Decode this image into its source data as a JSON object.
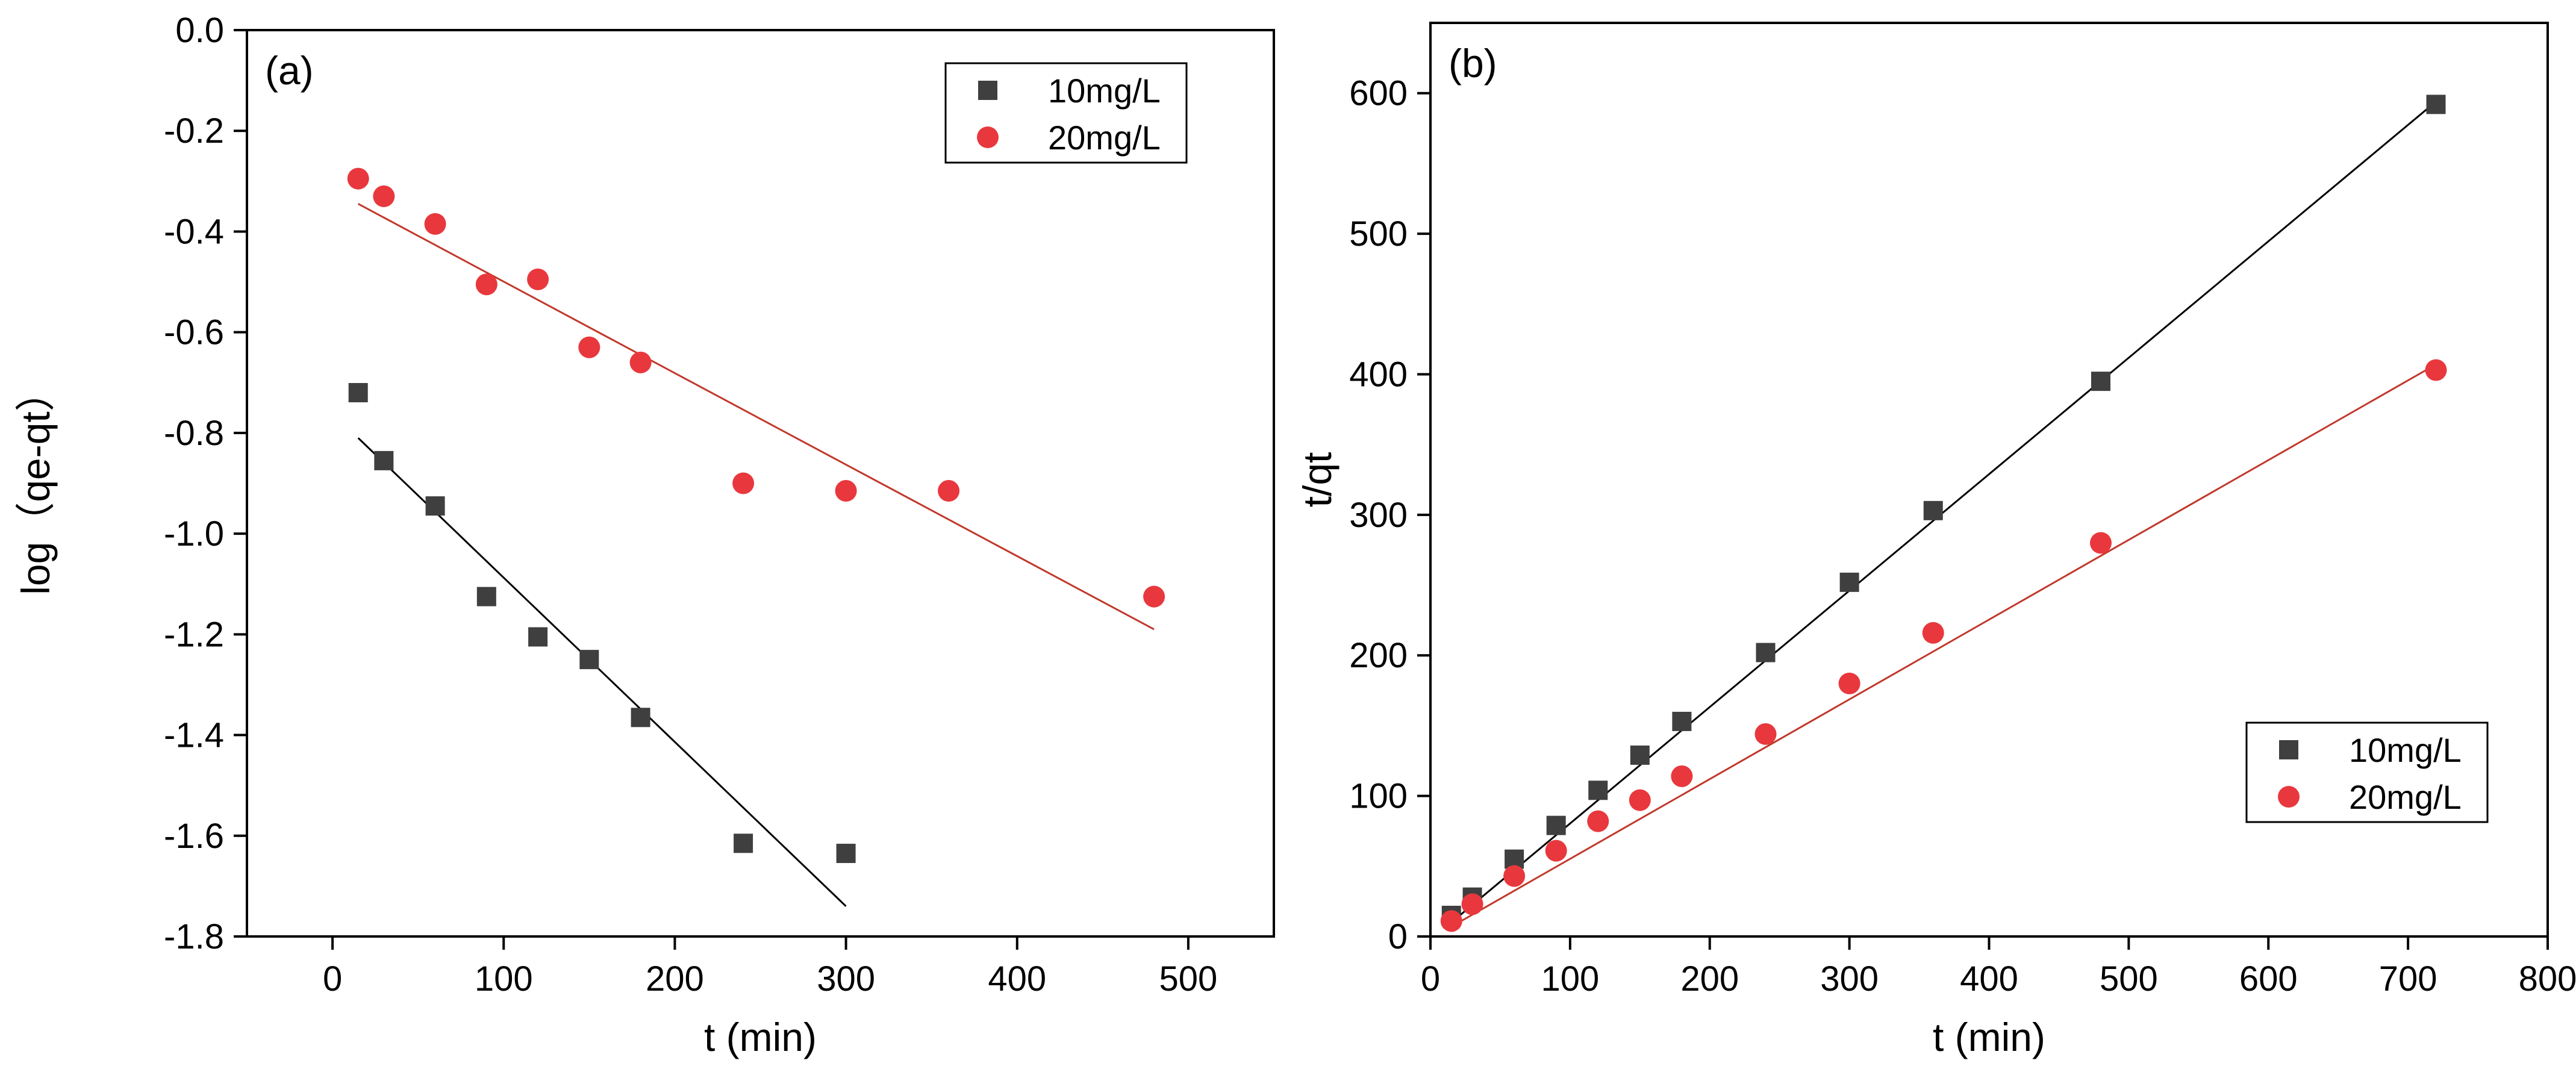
{
  "chart_data": [
    {
      "type": "scatter",
      "panel_label": "(a)",
      "xlabel": "t (min)",
      "ylabel": "log（qe-qt）",
      "xlim": [
        -50,
        550
      ],
      "ylim": [
        -1.8,
        0.0
      ],
      "xticks": [
        0,
        100,
        200,
        300,
        400,
        500
      ],
      "yticks": [
        0.0,
        -0.2,
        -0.4,
        -0.6,
        -0.8,
        -1.0,
        -1.2,
        -1.4,
        -1.6,
        -1.8
      ],
      "ytick_labels": [
        "0.0",
        "-0.2",
        "-0.4",
        "-0.6",
        "-0.8",
        "-1.0",
        "-1.2",
        "-1.4",
        "-1.6",
        "-1.8"
      ],
      "legend_position": "top-right",
      "series": [
        {
          "name": "10mg/L",
          "marker": "square",
          "color": "#3f3f3f",
          "x": [
            15,
            30,
            60,
            90,
            120,
            150,
            180,
            240,
            300
          ],
          "y": [
            -0.72,
            -0.855,
            -0.945,
            -1.125,
            -1.205,
            -1.25,
            -1.365,
            -1.615,
            -1.635
          ],
          "fit": {
            "x": [
              15,
              300
            ],
            "y": [
              -0.81,
              -1.74
            ],
            "color": "#000000"
          }
        },
        {
          "name": "20mg/L",
          "marker": "circle",
          "color": "#e8383d",
          "x": [
            15,
            30,
            60,
            90,
            120,
            150,
            180,
            240,
            300,
            360,
            480
          ],
          "y": [
            -0.295,
            -0.33,
            -0.385,
            -0.505,
            -0.495,
            -0.63,
            -0.66,
            -0.9,
            -0.915,
            -0.915,
            -1.125
          ],
          "fit": {
            "x": [
              15,
              480
            ],
            "y": [
              -0.345,
              -1.19
            ],
            "color": "#c0392b"
          }
        }
      ]
    },
    {
      "type": "scatter",
      "panel_label": "(b)",
      "xlabel": "t (min)",
      "ylabel": "t/qt",
      "xlim": [
        0,
        800
      ],
      "ylim": [
        0,
        650
      ],
      "xticks": [
        0,
        100,
        200,
        300,
        400,
        500,
        600,
        700,
        800
      ],
      "yticks": [
        0,
        100,
        200,
        300,
        400,
        500,
        600
      ],
      "ytick_labels": [
        "0",
        "100",
        "200",
        "300",
        "400",
        "500",
        "600"
      ],
      "legend_position": "bottom-right",
      "series": [
        {
          "name": "10mg/L",
          "marker": "square",
          "color": "#3f3f3f",
          "x": [
            15,
            30,
            60,
            90,
            120,
            150,
            180,
            240,
            300,
            360,
            480,
            720
          ],
          "y": [
            15,
            28,
            55,
            79,
            104,
            129,
            153,
            202,
            252,
            303,
            395,
            592
          ],
          "fit": {
            "x": [
              15,
              720
            ],
            "y": [
              10,
              594
            ],
            "color": "#000000"
          }
        },
        {
          "name": "20mg/L",
          "marker": "circle",
          "color": "#e8383d",
          "x": [
            15,
            30,
            60,
            90,
            120,
            150,
            180,
            240,
            300,
            360,
            480,
            720
          ],
          "y": [
            11,
            23,
            43,
            61,
            82,
            97,
            114,
            144,
            180,
            216,
            280,
            403
          ],
          "fit": {
            "x": [
              15,
              720
            ],
            "y": [
              7,
              407
            ],
            "color": "#c0392b"
          }
        }
      ]
    }
  ]
}
